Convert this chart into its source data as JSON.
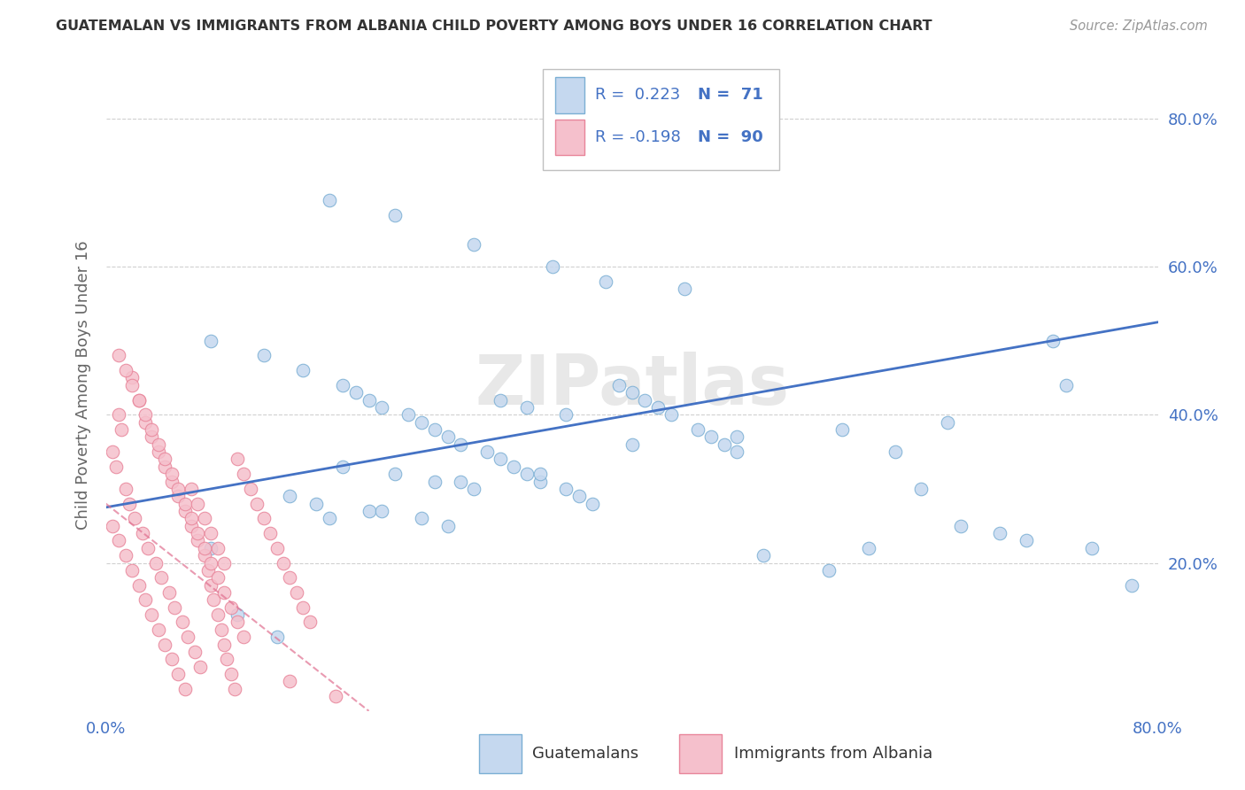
{
  "title": "GUATEMALAN VS IMMIGRANTS FROM ALBANIA CHILD POVERTY AMONG BOYS UNDER 16 CORRELATION CHART",
  "source": "Source: ZipAtlas.com",
  "ylabel": "Child Poverty Among Boys Under 16",
  "xlim": [
    0.0,
    0.8
  ],
  "ylim": [
    0.0,
    0.88
  ],
  "xtick_positions": [
    0.0,
    0.1,
    0.2,
    0.3,
    0.4,
    0.5,
    0.6,
    0.7,
    0.8
  ],
  "xticklabels": [
    "0.0%",
    "",
    "",
    "",
    "",
    "",
    "",
    "",
    "80.0%"
  ],
  "ytick_positions": [
    0.2,
    0.4,
    0.6,
    0.8
  ],
  "ytick_labels": [
    "20.0%",
    "40.0%",
    "60.0%",
    "80.0%"
  ],
  "R_blue": 0.223,
  "N_blue": 71,
  "R_pink": -0.198,
  "N_pink": 90,
  "blue_face_color": "#c5d8ef",
  "blue_edge_color": "#7bafd4",
  "pink_face_color": "#f5c0cc",
  "pink_edge_color": "#e8859a",
  "blue_line_color": "#4472c4",
  "pink_line_color": "#e07090",
  "text_color": "#4472c4",
  "ylabel_color": "#666666",
  "title_color": "#333333",
  "source_color": "#999999",
  "watermark_color": "#e8e8e8",
  "grid_color": "#d0d0d0",
  "blue_trend_x0": 0.0,
  "blue_trend_x1": 0.8,
  "blue_trend_y0": 0.275,
  "blue_trend_y1": 0.525,
  "pink_trend_x0": 0.0,
  "pink_trend_x1": 0.2,
  "pink_trend_y0": 0.28,
  "pink_trend_y1": 0.0,
  "legend_R_blue_str": "R =  0.223",
  "legend_N_blue_str": "N =  71",
  "legend_R_pink_str": "R = -0.198",
  "legend_N_pink_str": "N =  90"
}
